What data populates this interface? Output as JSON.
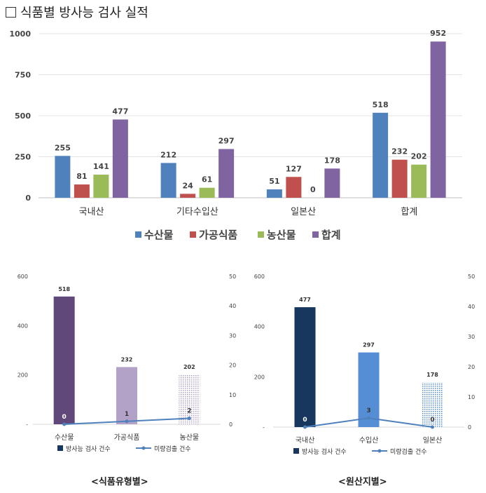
{
  "title": "식품별 방사능 검사 실적",
  "colors": {
    "seafood": "#4f81bd",
    "processed": "#c0504d",
    "agri": "#9bbb59",
    "total": "#8064a2",
    "line": "#4f81bd",
    "c2_bar0": "#60497a",
    "c2_bar1": "#b3a2c7",
    "c3_bar0": "#17375e",
    "c3_bar1": "#558ed5",
    "c3_bar2": "#8eb4e3"
  },
  "chart_data": [
    {
      "type": "bar",
      "categories": [
        "국내산",
        "기타수입산",
        "일본산",
        "합계"
      ],
      "series": [
        {
          "name": "수산물",
          "values": [
            255,
            212,
            51,
            518
          ]
        },
        {
          "name": "가공식품",
          "values": [
            81,
            24,
            127,
            232
          ]
        },
        {
          "name": "농산물",
          "values": [
            141,
            61,
            0,
            202
          ]
        },
        {
          "name": "합계",
          "values": [
            477,
            297,
            178,
            952
          ]
        }
      ],
      "ylim": [
        0,
        1000
      ],
      "yticks": [
        "0",
        "250",
        "500",
        "750",
        "1000"
      ],
      "legend": "bottom"
    },
    {
      "type": "bar",
      "categories": [
        "수산물",
        "가공식품",
        "농산물"
      ],
      "series": [
        {
          "name": "방사능 검사 건수",
          "values": [
            518,
            232,
            202
          ]
        },
        {
          "name": "미량검출 건수",
          "values": [
            0,
            1,
            2
          ]
        }
      ],
      "ylim": [
        0,
        600
      ],
      "yticks": [
        "-",
        "200",
        "400",
        "600"
      ],
      "y2lim": [
        0,
        50
      ],
      "y2ticks": [
        "0",
        "10",
        "20",
        "30",
        "40",
        "50"
      ],
      "legend": "bottom",
      "caption": "<식품유형별>"
    },
    {
      "type": "bar",
      "categories": [
        "국내산",
        "수입산",
        "일본산"
      ],
      "series": [
        {
          "name": "방사능 검사 건수",
          "values": [
            477,
            297,
            178
          ]
        },
        {
          "name": "미량검출 건수",
          "values": [
            0,
            3,
            0
          ]
        }
      ],
      "ylim": [
        0,
        600
      ],
      "yticks": [
        "-",
        "200",
        "400",
        "600"
      ],
      "y2lim": [
        0,
        50
      ],
      "y2ticks": [
        "0",
        "10",
        "20",
        "30",
        "40",
        "50"
      ],
      "legend": "bottom",
      "caption": "<원산지별>"
    }
  ]
}
